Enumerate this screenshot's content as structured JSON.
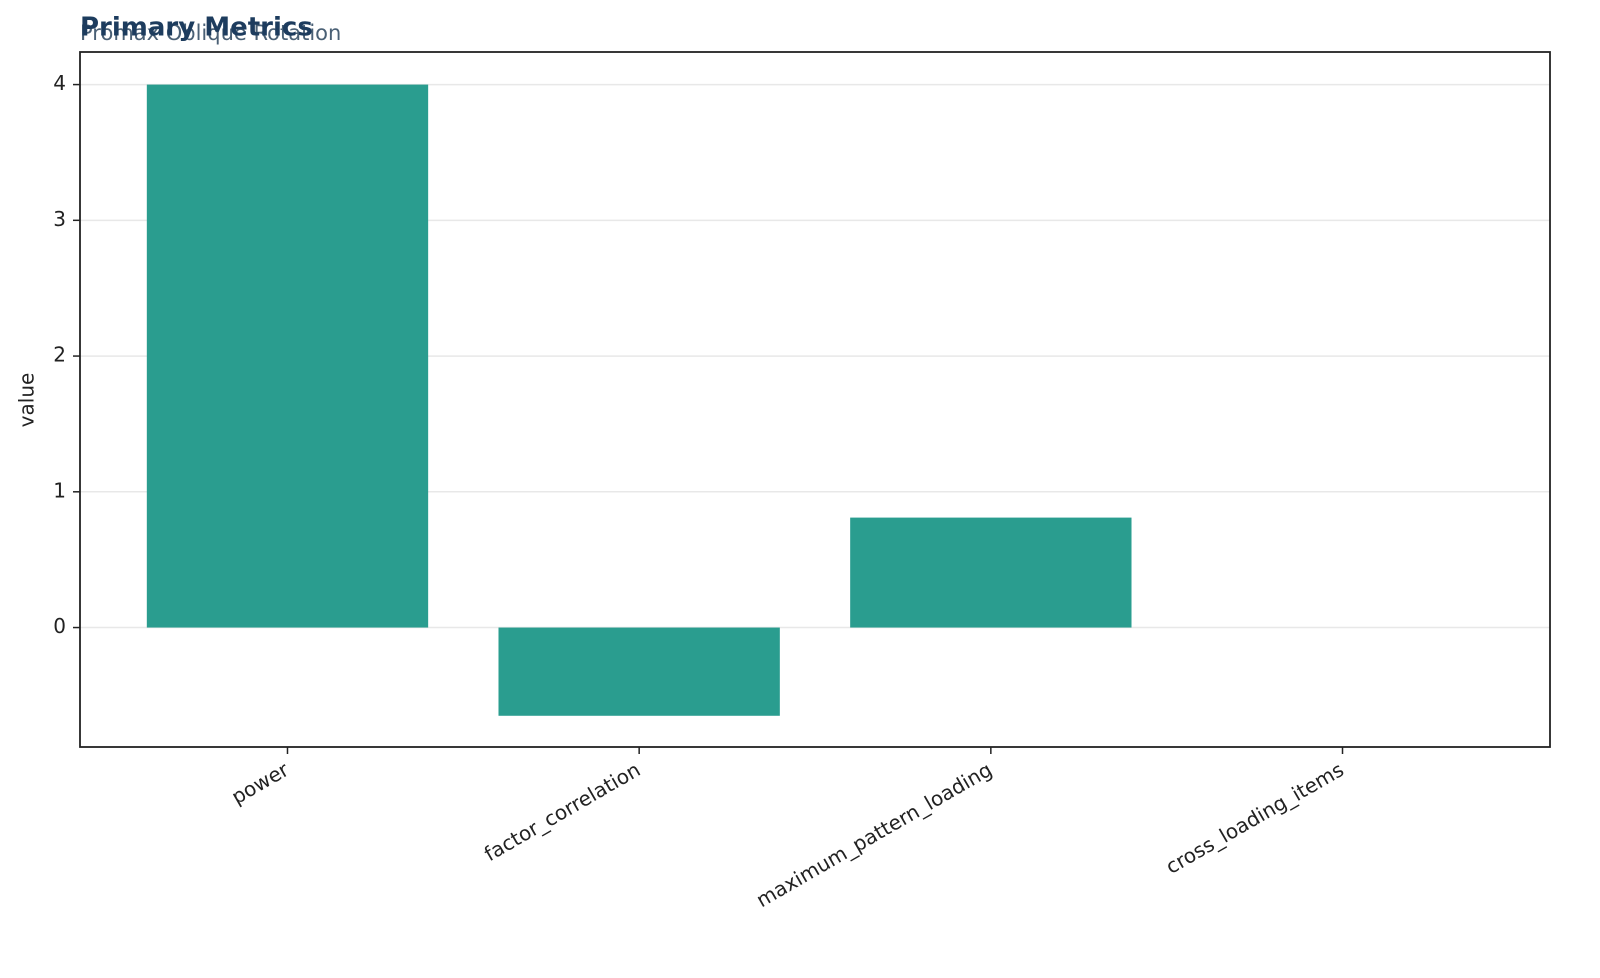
{
  "chart_data": {
    "type": "bar",
    "title": "Primary Metrics",
    "subtitle": "Promax Oblique Rotation",
    "y_label": "value",
    "categories": [
      "power",
      "factor_correlation",
      "maximum_pattern_loading",
      "cross_loading_items"
    ],
    "values": [
      4,
      -0.65,
      0.81,
      0
    ],
    "color": "#2a9d8f",
    "ylim": [
      -0.88,
      4.24
    ],
    "yticks": [
      0,
      1,
      2,
      3,
      4
    ],
    "grid": true
  }
}
